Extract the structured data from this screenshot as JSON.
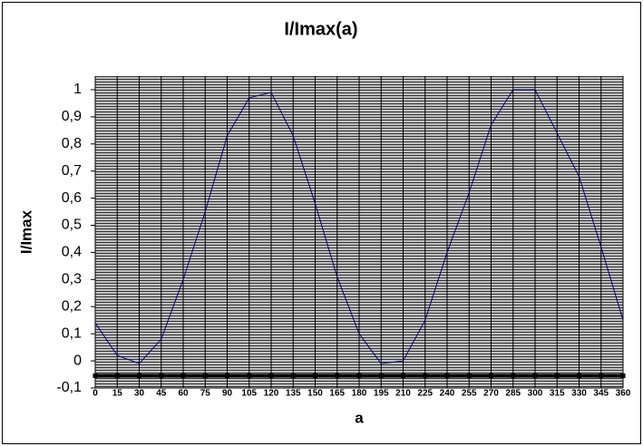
{
  "chart_data": {
    "type": "line",
    "title": "I/Imax(a)",
    "x_label": "a",
    "y_label": "I/Imax",
    "x": [
      0,
      15,
      30,
      45,
      60,
      75,
      90,
      105,
      120,
      135,
      150,
      165,
      180,
      195,
      210,
      225,
      240,
      255,
      270,
      285,
      300,
      315,
      330,
      345,
      360
    ],
    "xlim": [
      0,
      360
    ],
    "xticks": [
      0,
      15,
      30,
      45,
      60,
      75,
      90,
      105,
      120,
      135,
      150,
      165,
      180,
      195,
      210,
      225,
      240,
      255,
      270,
      285,
      300,
      315,
      330,
      345,
      360
    ],
    "ylim": [
      -0.1,
      1.05
    ],
    "yticks": [
      {
        "value": -0.1,
        "label": "-0,1"
      },
      0,
      {
        "value": 0.1,
        "label": "0,1"
      },
      {
        "value": 0.2,
        "label": "0,2"
      },
      {
        "value": 0.3,
        "label": "0,3"
      },
      {
        "value": 0.4,
        "label": "0,4"
      },
      {
        "value": 0.5,
        "label": "0,5"
      },
      {
        "value": 0.6,
        "label": "0,6"
      },
      {
        "value": 0.7,
        "label": "0,7"
      },
      {
        "value": 0.8,
        "label": "0,8"
      },
      {
        "value": 0.9,
        "label": "0,9"
      },
      1
    ],
    "grid": true,
    "series": [
      {
        "color": "#000080",
        "values": [
          0.14,
          0.02,
          -0.01,
          0.08,
          0.3,
          0.55,
          0.83,
          0.97,
          0.99,
          0.83,
          0.58,
          0.31,
          0.1,
          -0.01,
          0.0,
          0.15,
          0.4,
          0.62,
          0.87,
          1.0,
          1.0,
          0.84,
          0.68,
          0.42,
          0.15
        ]
      },
      {
        "color": "#000000",
        "markers": true,
        "values": [
          -0.055,
          -0.055,
          -0.055,
          -0.055,
          -0.055,
          -0.055,
          -0.055,
          -0.055,
          -0.055,
          -0.055,
          -0.055,
          -0.055,
          -0.055,
          -0.055,
          -0.055,
          -0.055,
          -0.055,
          -0.055,
          -0.055,
          -0.055,
          -0.055,
          -0.055,
          -0.055,
          -0.055,
          -0.055
        ]
      }
    ]
  }
}
